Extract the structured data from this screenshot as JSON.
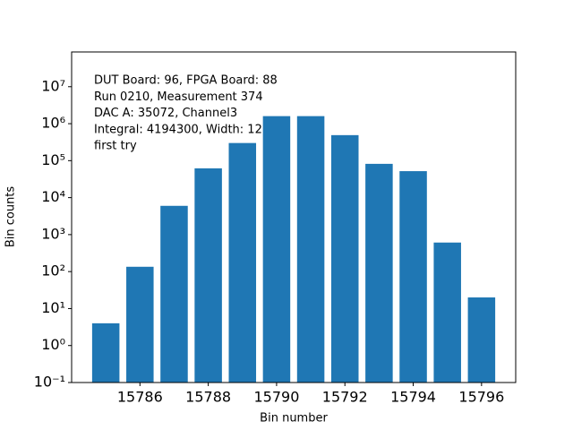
{
  "chart_data": {
    "type": "bar",
    "x": [
      15785,
      15786,
      15787,
      15788,
      15789,
      15790,
      15791,
      15792,
      15793,
      15794,
      15795,
      15796
    ],
    "values": [
      4,
      135,
      6000,
      62000,
      300000,
      1600000,
      1600000,
      490000,
      82000,
      52000,
      610,
      20
    ],
    "color": "#1f77b4",
    "xlim": [
      15784.0,
      15797.0
    ],
    "xticks": [
      15786,
      15788,
      15790,
      15792,
      15794,
      15796
    ],
    "ylim": [
      0.1,
      87000000
    ],
    "yscale": "log",
    "yticks": [
      {
        "value": 0.1,
        "label": "10⁻¹"
      },
      {
        "value": 1,
        "label": "10⁰"
      },
      {
        "value": 10,
        "label": "10¹"
      },
      {
        "value": 100,
        "label": "10²"
      },
      {
        "value": 1000,
        "label": "10³"
      },
      {
        "value": 10000,
        "label": "10⁴"
      },
      {
        "value": 100000,
        "label": "10⁵"
      },
      {
        "value": 1000000,
        "label": "10⁶"
      },
      {
        "value": 10000000,
        "label": "10⁷"
      }
    ],
    "xlabel": "Bin number",
    "ylabel": "Bin counts",
    "annotations": [
      "DUT Board: 96, FPGA Board: 88",
      "Run 0210, Measurement 374",
      "DAC A: 35072, Channel3",
      "Integral: 4194300, Width: 12",
      "first try"
    ]
  }
}
